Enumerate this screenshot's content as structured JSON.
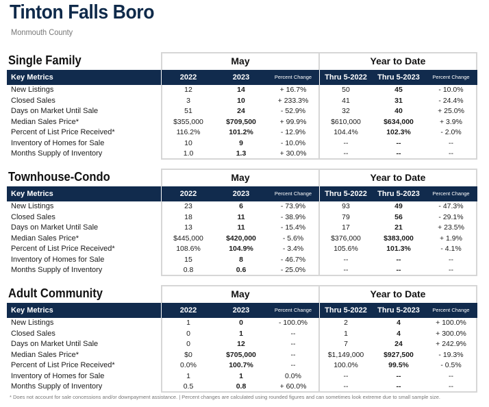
{
  "page": {
    "title": "Tinton Falls Boro",
    "subtitle": "Monmouth County"
  },
  "columns": {
    "key_metrics": "Key Metrics",
    "may": "May",
    "ytd": "Year to Date",
    "y2022": "2022",
    "y2023": "2023",
    "pct_change": "Percent Change",
    "thru_2022": "Thru 5-2022",
    "thru_2023": "Thru 5-2023"
  },
  "sections": [
    {
      "title": "Single Family",
      "rows": [
        {
          "metric": "New Listings",
          "v2022": "12",
          "v2023": "14",
          "pct": "+ 16.7%",
          "ytd2022": "50",
          "ytd2023": "45",
          "ytd_pct": "- 10.0%"
        },
        {
          "metric": "Closed Sales",
          "v2022": "3",
          "v2023": "10",
          "pct": "+ 233.3%",
          "ytd2022": "41",
          "ytd2023": "31",
          "ytd_pct": "- 24.4%"
        },
        {
          "metric": "Days on Market Until Sale",
          "v2022": "51",
          "v2023": "24",
          "pct": "- 52.9%",
          "ytd2022": "32",
          "ytd2023": "40",
          "ytd_pct": "+ 25.0%"
        },
        {
          "metric": "Median Sales Price*",
          "v2022": "$355,000",
          "v2023": "$709,500",
          "pct": "+ 99.9%",
          "ytd2022": "$610,000",
          "ytd2023": "$634,000",
          "ytd_pct": "+ 3.9%"
        },
        {
          "metric": "Percent of List Price Received*",
          "v2022": "116.2%",
          "v2023": "101.2%",
          "pct": "- 12.9%",
          "ytd2022": "104.4%",
          "ytd2023": "102.3%",
          "ytd_pct": "- 2.0%"
        },
        {
          "metric": "Inventory of Homes for Sale",
          "v2022": "10",
          "v2023": "9",
          "pct": "- 10.0%",
          "ytd2022": "--",
          "ytd2023": "--",
          "ytd_pct": "--"
        },
        {
          "metric": "Months Supply of Inventory",
          "v2022": "1.0",
          "v2023": "1.3",
          "pct": "+ 30.0%",
          "ytd2022": "--",
          "ytd2023": "--",
          "ytd_pct": "--"
        }
      ]
    },
    {
      "title": "Townhouse-Condo",
      "rows": [
        {
          "metric": "New Listings",
          "v2022": "23",
          "v2023": "6",
          "pct": "- 73.9%",
          "ytd2022": "93",
          "ytd2023": "49",
          "ytd_pct": "- 47.3%"
        },
        {
          "metric": "Closed Sales",
          "v2022": "18",
          "v2023": "11",
          "pct": "- 38.9%",
          "ytd2022": "79",
          "ytd2023": "56",
          "ytd_pct": "- 29.1%"
        },
        {
          "metric": "Days on Market Until Sale",
          "v2022": "13",
          "v2023": "11",
          "pct": "- 15.4%",
          "ytd2022": "17",
          "ytd2023": "21",
          "ytd_pct": "+ 23.5%"
        },
        {
          "metric": "Median Sales Price*",
          "v2022": "$445,000",
          "v2023": "$420,000",
          "pct": "- 5.6%",
          "ytd2022": "$376,000",
          "ytd2023": "$383,000",
          "ytd_pct": "+ 1.9%"
        },
        {
          "metric": "Percent of List Price Received*",
          "v2022": "108.6%",
          "v2023": "104.9%",
          "pct": "- 3.4%",
          "ytd2022": "105.6%",
          "ytd2023": "101.3%",
          "ytd_pct": "- 4.1%"
        },
        {
          "metric": "Inventory of Homes for Sale",
          "v2022": "15",
          "v2023": "8",
          "pct": "- 46.7%",
          "ytd2022": "--",
          "ytd2023": "--",
          "ytd_pct": "--"
        },
        {
          "metric": "Months Supply of Inventory",
          "v2022": "0.8",
          "v2023": "0.6",
          "pct": "- 25.0%",
          "ytd2022": "--",
          "ytd2023": "--",
          "ytd_pct": "--"
        }
      ]
    },
    {
      "title": "Adult Community",
      "rows": [
        {
          "metric": "New Listings",
          "v2022": "1",
          "v2023": "0",
          "pct": "- 100.0%",
          "ytd2022": "2",
          "ytd2023": "4",
          "ytd_pct": "+ 100.0%"
        },
        {
          "metric": "Closed Sales",
          "v2022": "0",
          "v2023": "1",
          "pct": "--",
          "ytd2022": "1",
          "ytd2023": "4",
          "ytd_pct": "+ 300.0%"
        },
        {
          "metric": "Days on Market Until Sale",
          "v2022": "0",
          "v2023": "12",
          "pct": "--",
          "ytd2022": "7",
          "ytd2023": "24",
          "ytd_pct": "+ 242.9%"
        },
        {
          "metric": "Median Sales Price*",
          "v2022": "$0",
          "v2023": "$705,000",
          "pct": "--",
          "ytd2022": "$1,149,000",
          "ytd2023": "$927,500",
          "ytd_pct": "- 19.3%"
        },
        {
          "metric": "Percent of List Price Received*",
          "v2022": "0.0%",
          "v2023": "100.7%",
          "pct": "--",
          "ytd2022": "100.0%",
          "ytd2023": "99.5%",
          "ytd_pct": "- 0.5%"
        },
        {
          "metric": "Inventory of Homes for Sale",
          "v2022": "1",
          "v2023": "1",
          "pct": "0.0%",
          "ytd2022": "--",
          "ytd2023": "--",
          "ytd_pct": "--"
        },
        {
          "metric": "Months Supply of Inventory",
          "v2022": "0.5",
          "v2023": "0.8",
          "pct": "+ 60.0%",
          "ytd2022": "--",
          "ytd2023": "--",
          "ytd_pct": "--"
        }
      ]
    }
  ],
  "footnote": "* Does not account for sale concessions and/or downpayment assistance.  |  Percent changes are calculated using rounded figures and can sometimes look extreme due to small sample size.",
  "colors": {
    "header_bar": "#112b4d",
    "title": "#0f2a4a"
  }
}
